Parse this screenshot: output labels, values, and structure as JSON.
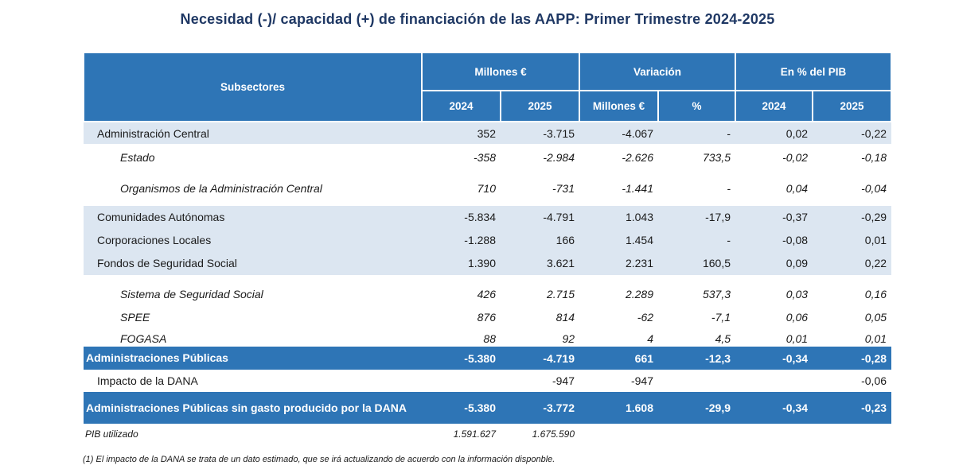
{
  "title": "Necesidad (-)/ capacidad (+) de financiación de las AAPP:   Primer Trimestre 2024-2025",
  "header": {
    "subsectores": "Subsectores",
    "group_millones": "Millones €",
    "group_variacion": "Variación",
    "group_pib": "En % del PIB",
    "col_2024": "2024",
    "col_2025": "2025",
    "col_var_millones": "Millones €",
    "col_var_pct": "%",
    "col_pib_2024": "2024",
    "col_pib_2025": "2025"
  },
  "rows": [
    {
      "label": "Administración Central",
      "m2024": "352",
      "m2025": "-3.715",
      "var_m": "-4.067",
      "var_pct": "-",
      "pib2024": "0,02",
      "pib2025": "-0,22"
    },
    {
      "label": "Estado",
      "m2024": "-358",
      "m2025": "-2.984",
      "var_m": "-2.626",
      "var_pct": "733,5",
      "pib2024": "-0,02",
      "pib2025": "-0,18"
    },
    {
      "label": "Organismos de la Administración Central",
      "m2024": "710",
      "m2025": "-731",
      "var_m": "-1.441",
      "var_pct": "-",
      "pib2024": "0,04",
      "pib2025": "-0,04"
    },
    {
      "label": "Comunidades Autónomas",
      "m2024": "-5.834",
      "m2025": "-4.791",
      "var_m": "1.043",
      "var_pct": "-17,9",
      "pib2024": "-0,37",
      "pib2025": "-0,29"
    },
    {
      "label": "Corporaciones Locales",
      "m2024": "-1.288",
      "m2025": "166",
      "var_m": "1.454",
      "var_pct": "-",
      "pib2024": "-0,08",
      "pib2025": "0,01"
    },
    {
      "label": "Fondos de Seguridad Social",
      "m2024": "1.390",
      "m2025": "3.621",
      "var_m": "2.231",
      "var_pct": "160,5",
      "pib2024": "0,09",
      "pib2025": "0,22"
    },
    {
      "label": "Sistema de Seguridad Social",
      "m2024": "426",
      "m2025": "2.715",
      "var_m": "2.289",
      "var_pct": "537,3",
      "pib2024": "0,03",
      "pib2025": "0,16"
    },
    {
      "label": "SPEE",
      "m2024": "876",
      "m2025": "814",
      "var_m": "-62",
      "var_pct": "-7,1",
      "pib2024": "0,06",
      "pib2025": "0,05"
    },
    {
      "label": "FOGASA",
      "m2024": "88",
      "m2025": "92",
      "var_m": "4",
      "var_pct": "4,5",
      "pib2024": "0,01",
      "pib2025": "0,01"
    },
    {
      "label": "Administraciones Públicas",
      "m2024": "-5.380",
      "m2025": "-4.719",
      "var_m": "661",
      "var_pct": "-12,3",
      "pib2024": "-0,34",
      "pib2025": "-0,28"
    },
    {
      "label": "Impacto de la DANA",
      "m2024": "",
      "m2025": "-947",
      "var_m": "-947",
      "var_pct": "",
      "pib2024": "",
      "pib2025": "-0,06"
    },
    {
      "label": "Administraciones Públicas sin gasto producido por la DANA",
      "m2024": "-5.380",
      "m2025": "-3.772",
      "var_m": "1.608",
      "var_pct": "-29,9",
      "pib2024": "-0,34",
      "pib2025": "-0,23"
    }
  ],
  "pib": {
    "label": "PIB utilizado",
    "v2024": "1.591.627",
    "v2025": "1.675.590"
  },
  "footnote": "(1) El impacto de la DANA se trata de un dato estimado, que se irá actualizando de acuerdo con la información disponble.",
  "colors": {
    "header_blue": "#2e75b6",
    "shade_blue": "#dce6f1",
    "title_navy": "#1f3864"
  }
}
